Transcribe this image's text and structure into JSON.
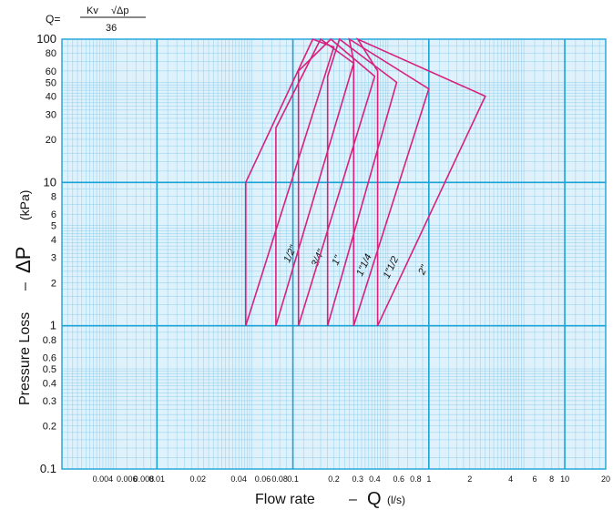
{
  "formula": {
    "q_prefix": "Q=",
    "numerator_kv": "Kv",
    "numerator_dp": "√Δp",
    "denominator": "36"
  },
  "chart_data": {
    "type": "line",
    "title": "",
    "xlabel": {
      "prefix": "Flow rate",
      "dash": "–",
      "symbol": "Q",
      "unit": "(l/s)"
    },
    "ylabel": {
      "prefix": "Pressure Loss",
      "dash": "–",
      "symbol": "ΔP",
      "unit": "(kPa)"
    },
    "x_scale": "log",
    "y_scale": "log",
    "xlim": [
      0.002,
      20
    ],
    "ylim": [
      0.1,
      100
    ],
    "grid": true,
    "colors": {
      "background": "#dff1fb",
      "grid_minor": "#86cbea",
      "grid_major": "#1aa3d8",
      "series": "#d6227e"
    },
    "x_ticks": [
      {
        "value": 0.004,
        "label": "0.004"
      },
      {
        "value": 0.006,
        "label": "0.006"
      },
      {
        "value": 0.008,
        "label": "0.008"
      },
      {
        "value": 0.01,
        "label": "0.01"
      },
      {
        "value": 0.02,
        "label": "0.02"
      },
      {
        "value": 0.04,
        "label": "0.04"
      },
      {
        "value": 0.06,
        "label": "0.06"
      },
      {
        "value": 0.08,
        "label": "0.08"
      },
      {
        "value": 0.1,
        "label": "0.1"
      },
      {
        "value": 0.2,
        "label": "0.2"
      },
      {
        "value": 0.3,
        "label": "0.3"
      },
      {
        "value": 0.4,
        "label": "0.4"
      },
      {
        "value": 0.6,
        "label": "0.6"
      },
      {
        "value": 0.8,
        "label": "0.8"
      },
      {
        "value": 1,
        "label": "1"
      },
      {
        "value": 2,
        "label": "2"
      },
      {
        "value": 4,
        "label": "4"
      },
      {
        "value": 6,
        "label": "6"
      },
      {
        "value": 8,
        "label": "8"
      },
      {
        "value": 10,
        "label": "10"
      },
      {
        "value": 20,
        "label": "20"
      }
    ],
    "y_ticks": [
      {
        "value": 0.1,
        "label": "0.1"
      },
      {
        "value": 0.2,
        "label": "0.2"
      },
      {
        "value": 0.3,
        "label": "0.3"
      },
      {
        "value": 0.4,
        "label": "0.4"
      },
      {
        "value": 0.5,
        "label": "0.5"
      },
      {
        "value": 0.6,
        "label": "0.6"
      },
      {
        "value": 0.8,
        "label": "0.8"
      },
      {
        "value": 1,
        "label": "1"
      },
      {
        "value": 2,
        "label": "2"
      },
      {
        "value": 3,
        "label": "3"
      },
      {
        "value": 4,
        "label": "4"
      },
      {
        "value": 5,
        "label": "5"
      },
      {
        "value": 6,
        "label": "6"
      },
      {
        "value": 8,
        "label": "8"
      },
      {
        "value": 10,
        "label": "10"
      },
      {
        "value": 20,
        "label": "20"
      },
      {
        "value": 30,
        "label": "30"
      },
      {
        "value": 40,
        "label": "40"
      },
      {
        "value": 50,
        "label": "50"
      },
      {
        "value": 60,
        "label": "60"
      },
      {
        "value": 80,
        "label": "80"
      },
      {
        "value": 100,
        "label": "100"
      }
    ],
    "series": [
      {
        "name": "1/2\"",
        "points": [
          [
            0.045,
            1
          ],
          [
            0.045,
            10
          ],
          [
            0.14,
            100
          ],
          [
            0.2,
            88
          ],
          [
            0.045,
            1
          ]
        ],
        "label_at": [
          0.1,
          3.1
        ]
      },
      {
        "name": "3/4\"",
        "points": [
          [
            0.075,
            1
          ],
          [
            0.075,
            24
          ],
          [
            0.16,
            100
          ],
          [
            0.28,
            68
          ],
          [
            0.075,
            1
          ]
        ],
        "label_at": [
          0.16,
          2.9
        ]
      },
      {
        "name": "1\"",
        "points": [
          [
            0.11,
            1
          ],
          [
            0.11,
            60
          ],
          [
            0.19,
            100
          ],
          [
            0.4,
            55
          ],
          [
            0.11,
            1
          ]
        ],
        "label_at": [
          0.22,
          2.8
        ]
      },
      {
        "name": "1\"1/4",
        "points": [
          [
            0.18,
            1
          ],
          [
            0.18,
            55
          ],
          [
            0.22,
            100
          ],
          [
            0.58,
            50
          ],
          [
            0.18,
            1
          ]
        ],
        "label_at": [
          0.35,
          2.6
        ]
      },
      {
        "name": "1\"1/2",
        "points": [
          [
            0.28,
            1
          ],
          [
            0.28,
            70
          ],
          [
            0.26,
            100
          ],
          [
            1.0,
            45
          ],
          [
            0.28,
            1
          ]
        ],
        "label_at": [
          0.55,
          2.5
        ]
      },
      {
        "name": "2\"",
        "points": [
          [
            0.42,
            1
          ],
          [
            0.42,
            60
          ],
          [
            0.3,
            100
          ],
          [
            2.6,
            40
          ],
          [
            0.42,
            1
          ]
        ],
        "label_at": [
          0.95,
          2.4
        ]
      }
    ]
  }
}
